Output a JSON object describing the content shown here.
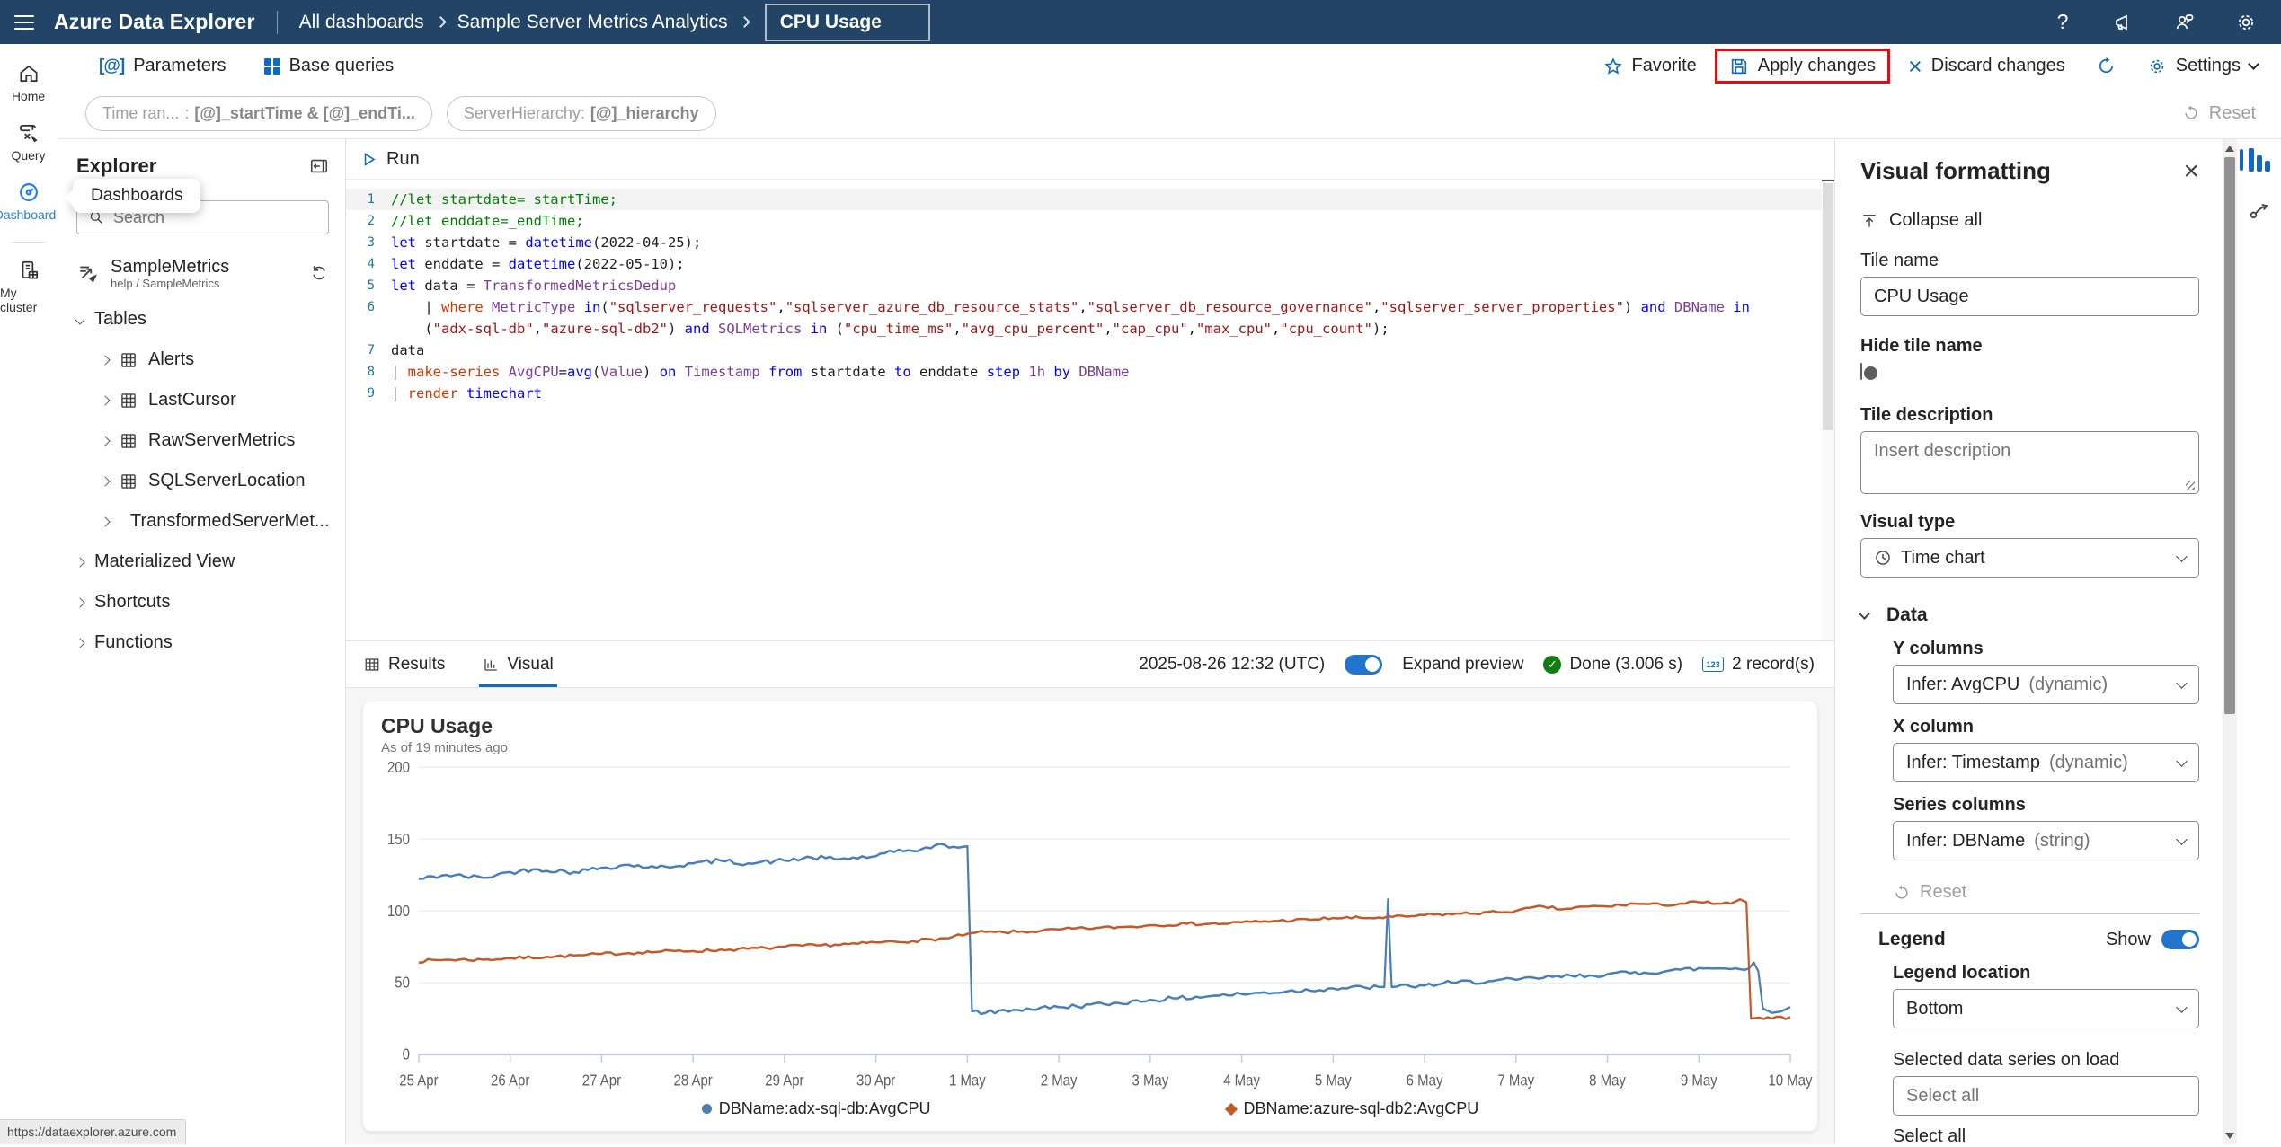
{
  "colors": {
    "accent": "#0f6cbd",
    "topbar": "#214467",
    "annotation": "#e30b13",
    "blue_series": "#4a7eba",
    "orange_series": "#c45a28"
  },
  "topbar": {
    "app_title": "Azure Data Explorer",
    "breadcrumbs": [
      "All dashboards",
      "Sample Server Metrics Analytics"
    ],
    "dashboard_name": "CPU Usage",
    "icons": [
      "help-icon",
      "announcements-icon",
      "feedback-icon",
      "settings-gear-icon"
    ]
  },
  "toolbar": {
    "parameters": "Parameters",
    "base_queries": "Base queries",
    "favorite": "Favorite",
    "apply": "Apply changes",
    "discard": "Discard changes",
    "settings": "Settings"
  },
  "pillbar": {
    "pills": [
      {
        "label": "Time ran...",
        "value": "[@]_startTime  & [@]_endTi..."
      },
      {
        "label": "ServerHierarchy:",
        "value": "[@]_hierarchy"
      }
    ],
    "reset": "Reset"
  },
  "sidebar": {
    "items": [
      {
        "label": "Home"
      },
      {
        "label": "Query"
      },
      {
        "label": "Dashboards",
        "active": true
      },
      {
        "label": "My cluster"
      }
    ]
  },
  "explorer": {
    "title": "Explorer",
    "tooltip": "Dashboards",
    "search_placeholder": "Search",
    "database": {
      "name": "SampleMetrics",
      "path": "help / SampleMetrics"
    },
    "tables_header": "Tables",
    "tables": [
      "Alerts",
      "LastCursor",
      "RawServerMetrics",
      "SQLServerLocation",
      "TransformedServerMet..."
    ],
    "groups": [
      "Materialized View",
      "Shortcuts",
      "Functions"
    ]
  },
  "editor": {
    "run_label": "Run",
    "lines": [
      {
        "num": "1",
        "cur": true,
        "tokens": [
          {
            "t": "//let startdate=_startTime;",
            "c": "cm"
          }
        ]
      },
      {
        "num": "2",
        "tokens": [
          {
            "t": "//let enddate=_endTime;",
            "c": "cm"
          }
        ]
      },
      {
        "num": "3",
        "tokens": [
          {
            "t": "let",
            "c": "kw"
          },
          {
            "t": " startdate = ",
            "c": "pl"
          },
          {
            "t": "datetime",
            "c": "kw"
          },
          {
            "t": "(2022-04-25);",
            "c": "pl"
          }
        ]
      },
      {
        "num": "4",
        "tokens": [
          {
            "t": "let",
            "c": "kw"
          },
          {
            "t": " enddate = ",
            "c": "pl"
          },
          {
            "t": "datetime",
            "c": "kw"
          },
          {
            "t": "(2022-05-10);",
            "c": "pl"
          }
        ]
      },
      {
        "num": "5",
        "tokens": [
          {
            "t": "let",
            "c": "kw"
          },
          {
            "t": " data = ",
            "c": "pl"
          },
          {
            "t": "TransformedMetricsDedup",
            "c": "id"
          }
        ]
      },
      {
        "num": "6",
        "tokens": [
          {
            "t": "    | ",
            "c": "pl"
          },
          {
            "t": "where",
            "c": "op"
          },
          {
            "t": " ",
            "c": "pl"
          },
          {
            "t": "MetricType",
            "c": "id"
          },
          {
            "t": " ",
            "c": "pl"
          },
          {
            "t": "in",
            "c": "kw"
          },
          {
            "t": "(",
            "c": "pl"
          },
          {
            "t": "\"sqlserver_requests\"",
            "c": "st"
          },
          {
            "t": ",",
            "c": "pl"
          },
          {
            "t": "\"sqlserver_azure_db_resource_stats\"",
            "c": "st"
          },
          {
            "t": ",",
            "c": "pl"
          },
          {
            "t": "\"sqlserver_db_resource_governance\"",
            "c": "st"
          },
          {
            "t": ",",
            "c": "pl"
          },
          {
            "t": "\"sqlserver_server_properties\"",
            "c": "st"
          },
          {
            "t": ") ",
            "c": "pl"
          },
          {
            "t": "and",
            "c": "kw"
          },
          {
            "t": " ",
            "c": "pl"
          },
          {
            "t": "DBName",
            "c": "id"
          },
          {
            "t": " ",
            "c": "pl"
          },
          {
            "t": "in",
            "c": "kw"
          }
        ]
      },
      {
        "num": "",
        "tokens": [
          {
            "t": "    (",
            "c": "pl"
          },
          {
            "t": "\"adx-sql-db\"",
            "c": "st"
          },
          {
            "t": ",",
            "c": "pl"
          },
          {
            "t": "\"azure-sql-db2\"",
            "c": "st"
          },
          {
            "t": ") ",
            "c": "pl"
          },
          {
            "t": "and",
            "c": "kw"
          },
          {
            "t": " ",
            "c": "pl"
          },
          {
            "t": "SQLMetrics",
            "c": "id"
          },
          {
            "t": " ",
            "c": "pl"
          },
          {
            "t": "in",
            "c": "kw"
          },
          {
            "t": " (",
            "c": "pl"
          },
          {
            "t": "\"cpu_time_ms\"",
            "c": "st"
          },
          {
            "t": ",",
            "c": "pl"
          },
          {
            "t": "\"avg_cpu_percent\"",
            "c": "st"
          },
          {
            "t": ",",
            "c": "pl"
          },
          {
            "t": "\"cap_cpu\"",
            "c": "st"
          },
          {
            "t": ",",
            "c": "pl"
          },
          {
            "t": "\"max_cpu\"",
            "c": "st"
          },
          {
            "t": ",",
            "c": "pl"
          },
          {
            "t": "\"cpu_count\"",
            "c": "st"
          },
          {
            "t": ");",
            "c": "pl"
          }
        ]
      },
      {
        "num": "7",
        "tokens": [
          {
            "t": "data",
            "c": "pl"
          }
        ]
      },
      {
        "num": "8",
        "tokens": [
          {
            "t": "| ",
            "c": "pl"
          },
          {
            "t": "make-series",
            "c": "op"
          },
          {
            "t": " ",
            "c": "pl"
          },
          {
            "t": "AvgCPU",
            "c": "id"
          },
          {
            "t": "=",
            "c": "pl"
          },
          {
            "t": "avg",
            "c": "kw"
          },
          {
            "t": "(",
            "c": "pl"
          },
          {
            "t": "Value",
            "c": "id"
          },
          {
            "t": ") ",
            "c": "pl"
          },
          {
            "t": "on",
            "c": "kw"
          },
          {
            "t": " ",
            "c": "pl"
          },
          {
            "t": "Timestamp",
            "c": "id"
          },
          {
            "t": " ",
            "c": "pl"
          },
          {
            "t": "from",
            "c": "kw"
          },
          {
            "t": " startdate ",
            "c": "pl"
          },
          {
            "t": "to",
            "c": "kw"
          },
          {
            "t": " enddate ",
            "c": "pl"
          },
          {
            "t": "step",
            "c": "kw"
          },
          {
            "t": " ",
            "c": "pl"
          },
          {
            "t": "1h",
            "c": "id"
          },
          {
            "t": " ",
            "c": "pl"
          },
          {
            "t": "by",
            "c": "kw"
          },
          {
            "t": " ",
            "c": "pl"
          },
          {
            "t": "DBName",
            "c": "id"
          }
        ]
      },
      {
        "num": "9",
        "tokens": [
          {
            "t": "| ",
            "c": "pl"
          },
          {
            "t": "render",
            "c": "op"
          },
          {
            "t": " ",
            "c": "pl"
          },
          {
            "t": "timechart",
            "c": "kw"
          }
        ]
      }
    ]
  },
  "resultsbar": {
    "tab_results": "Results",
    "tab_visual": "Visual",
    "timestamp": "2025-08-26 12:32 (UTC)",
    "expand_preview": "Expand preview",
    "status": "Done (3.006 s)",
    "records": "2 record(s)",
    "records_icon_text": "123"
  },
  "chart_data": {
    "type": "line",
    "title": "CPU Usage",
    "subtitle": "As of 19 minutes ago",
    "ylabel": "",
    "xlabel": "",
    "ylim": [
      0,
      200
    ],
    "yticks": [
      0,
      50,
      100,
      150,
      200
    ],
    "x_labels": [
      "25 Apr",
      "26 Apr",
      "27 Apr",
      "28 Apr",
      "29 Apr",
      "30 Apr",
      "1 May",
      "2 May",
      "3 May",
      "4 May",
      "5 May",
      "6 May",
      "7 May",
      "8 May",
      "9 May",
      "10 May"
    ],
    "x_domain_days": [
      0,
      15
    ],
    "grid": true,
    "legend_position": "bottom",
    "series": [
      {
        "name": "DBName:adx-sql-db:AvgCPU",
        "color": "#4a7eba",
        "marker": "circle",
        "noise": 1.6,
        "seed": 42,
        "points": [
          [
            0,
            122
          ],
          [
            0.3,
            125
          ],
          [
            0.7,
            123
          ],
          [
            1,
            127
          ],
          [
            1.3,
            129
          ],
          [
            1.7,
            127
          ],
          [
            2,
            130
          ],
          [
            2.3,
            132
          ],
          [
            2.6,
            130
          ],
          [
            3,
            133
          ],
          [
            3.3,
            135
          ],
          [
            3.6,
            133
          ],
          [
            4,
            135
          ],
          [
            4.3,
            137
          ],
          [
            4.6,
            136
          ],
          [
            5,
            138
          ],
          [
            5.2,
            141
          ],
          [
            5.5,
            143
          ],
          [
            5.75,
            146
          ],
          [
            5.9,
            144
          ],
          [
            6.0,
            145
          ],
          [
            6.05,
            30
          ],
          [
            6.2,
            29
          ],
          [
            6.5,
            31
          ],
          [
            7,
            33
          ],
          [
            7.5,
            35
          ],
          [
            8,
            38
          ],
          [
            8.3,
            39
          ],
          [
            8.7,
            41
          ],
          [
            9,
            42
          ],
          [
            9.5,
            44
          ],
          [
            10,
            46
          ],
          [
            10.5,
            47
          ],
          [
            10.56,
            47
          ],
          [
            10.6,
            108
          ],
          [
            10.64,
            47
          ],
          [
            11,
            48
          ],
          [
            11.3,
            50
          ],
          [
            11.7,
            51
          ],
          [
            12,
            52
          ],
          [
            12.4,
            54
          ],
          [
            12.8,
            55
          ],
          [
            13,
            56
          ],
          [
            13.4,
            57
          ],
          [
            13.8,
            59
          ],
          [
            14.1,
            60
          ],
          [
            14.4,
            60
          ],
          [
            14.55,
            60
          ],
          [
            14.6,
            64
          ],
          [
            14.65,
            58
          ],
          [
            14.7,
            32
          ],
          [
            14.8,
            29
          ],
          [
            14.9,
            30
          ],
          [
            15,
            33
          ]
        ]
      },
      {
        "name": "DBName:azure-sql-db2:AvgCPU",
        "color": "#c45a28",
        "marker": "diamond",
        "noise": 1.1,
        "seed": 7,
        "points": [
          [
            0,
            65
          ],
          [
            0.3,
            66
          ],
          [
            0.7,
            66
          ],
          [
            1,
            67
          ],
          [
            1.4,
            68
          ],
          [
            1.8,
            69
          ],
          [
            2,
            70
          ],
          [
            2.4,
            71
          ],
          [
            2.8,
            72
          ],
          [
            3,
            72
          ],
          [
            3.4,
            73
          ],
          [
            3.8,
            74
          ],
          [
            4,
            75
          ],
          [
            4.4,
            76
          ],
          [
            4.8,
            77
          ],
          [
            5,
            78
          ],
          [
            5.4,
            79
          ],
          [
            5.8,
            81
          ],
          [
            6,
            84
          ],
          [
            6.1,
            85
          ],
          [
            6.4,
            85
          ],
          [
            6.8,
            86
          ],
          [
            7,
            87
          ],
          [
            7.4,
            88
          ],
          [
            7.8,
            89
          ],
          [
            8,
            90
          ],
          [
            8.4,
            91
          ],
          [
            8.8,
            91
          ],
          [
            9,
            92
          ],
          [
            9.4,
            93
          ],
          [
            9.8,
            94
          ],
          [
            10,
            95
          ],
          [
            10.4,
            95
          ],
          [
            10.8,
            96
          ],
          [
            11,
            97
          ],
          [
            11.4,
            98
          ],
          [
            11.8,
            99
          ],
          [
            12,
            100
          ],
          [
            12.3,
            103
          ],
          [
            12.5,
            101
          ],
          [
            12.8,
            103
          ],
          [
            13,
            103
          ],
          [
            13.3,
            105
          ],
          [
            13.6,
            104
          ],
          [
            14,
            106
          ],
          [
            14.2,
            105
          ],
          [
            14.35,
            105
          ],
          [
            14.45,
            108
          ],
          [
            14.52,
            106
          ],
          [
            14.57,
            25
          ],
          [
            14.8,
            25
          ],
          [
            15,
            26
          ]
        ]
      }
    ]
  },
  "visual_panel": {
    "title": "Visual formatting",
    "collapse_all": "Collapse all",
    "tile_name_label": "Tile name",
    "tile_name_value": "CPU Usage",
    "hide_tile_label": "Hide tile name",
    "tile_desc_label": "Tile description",
    "tile_desc_placeholder": "Insert description",
    "visual_type_label": "Visual type",
    "visual_type_value": "Time chart",
    "data_section": "Data",
    "y_label": "Y columns",
    "y_value": "Infer: AvgCPU",
    "y_suffix": "(dynamic)",
    "x_label": "X column",
    "x_value": "Infer: Timestamp",
    "x_suffix": "(dynamic)",
    "series_label": "Series columns",
    "series_value": "Infer: DBName",
    "series_suffix": "(string)",
    "reset": "Reset",
    "legend_section": "Legend",
    "show_label": "Show",
    "legend_loc_label": "Legend location",
    "legend_loc_value": "Bottom",
    "selected_series_label": "Selected data series on load",
    "selected_series_placeholder": "Select all",
    "select_all": "Select all"
  },
  "status_tooltip": "https://dataexplorer.azure.com"
}
